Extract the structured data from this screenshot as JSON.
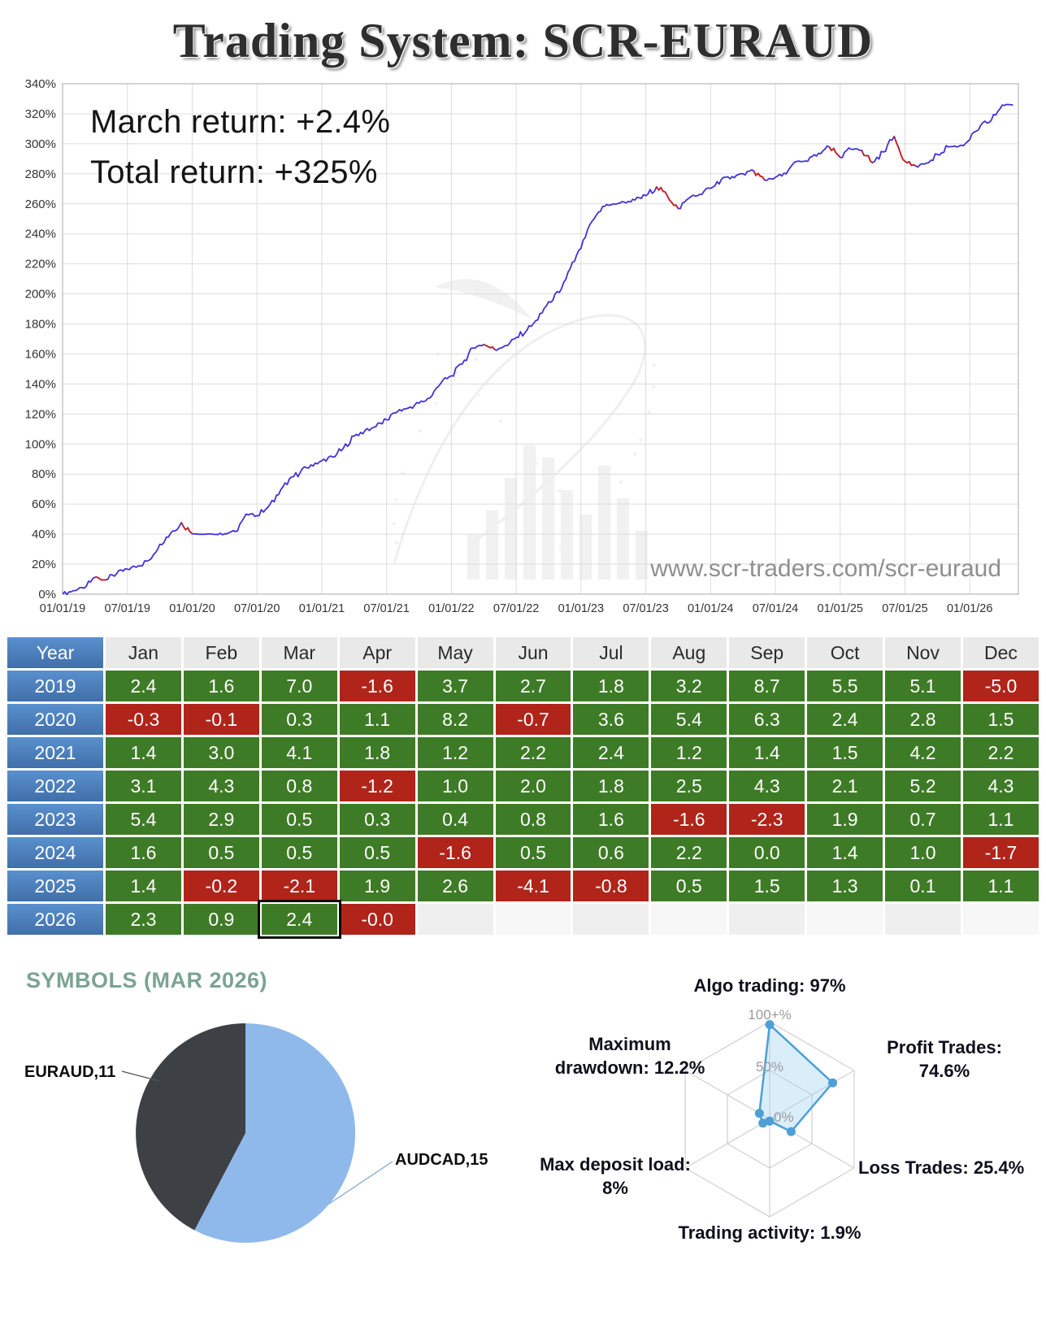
{
  "page_title": "Trading System: SCR-EURAUD",
  "equity_chart": {
    "annotation_march": "March return: +2.4%",
    "annotation_total": "Total return: +325%",
    "watermark_url": "www.scr-traders.com/scr-euraud",
    "line_color": "#4031dd",
    "drawdown_color": "#cc2020",
    "y_axis": {
      "min": 0,
      "max": 340,
      "step": 20,
      "suffix": "%"
    },
    "x_labels": [
      "01/01/19",
      "07/01/19",
      "01/01/20",
      "07/01/20",
      "01/01/21",
      "07/01/21",
      "01/01/22",
      "07/01/22",
      "01/01/23",
      "07/01/23",
      "01/01/24",
      "07/01/24",
      "01/01/25",
      "07/01/25",
      "01/01/26"
    ]
  },
  "chart_data": [
    {
      "type": "line",
      "name": "equity-curve",
      "title": "Cumulative return of SCR-EURAUD",
      "x_start": "01/01/19",
      "x_step": "1 month",
      "unit": "%",
      "y_range": [
        0,
        340
      ],
      "values": [
        0,
        2.4,
        4.0,
        11.3,
        9.5,
        13.6,
        16.7,
        18.8,
        22.6,
        33.2,
        40.6,
        47.7,
        40.3,
        39.9,
        39.8,
        40.2,
        41.7,
        53.4,
        52.3,
        57.8,
        66.3,
        76.8,
        81.0,
        86.1,
        88.9,
        91.5,
        97.2,
        105.3,
        109.0,
        111.5,
        116.2,
        121.4,
        124.0,
        127.2,
        130.6,
        140.3,
        145.5,
        153.2,
        164.0,
        166.2,
        163.0,
        165.6,
        170.9,
        175.8,
        182.7,
        194.8,
        201.0,
        216.7,
        230.3,
        248.1,
        258.2,
        260.0,
        261.1,
        262.5,
        265.4,
        271.3,
        265.3,
        256.9,
        263.7,
        266.3,
        270.3,
        276.2,
        278.1,
        280.0,
        281.9,
        275.8,
        277.7,
        279.9,
        288.3,
        288.3,
        293.7,
        297.7,
        290.9,
        296.4,
        295.6,
        287.3,
        294.6,
        304.9,
        288.3,
        285.2,
        287.1,
        292.9,
        298.0,
        298.4,
        302.8,
        312.1,
        315.8,
        325.8,
        325.8
      ]
    },
    {
      "type": "table",
      "name": "monthly-returns",
      "data_ref": "returns_table"
    },
    {
      "type": "pie",
      "name": "symbols-mar-2026",
      "labels": [
        "AUDCAD,15",
        "EURAUD,11"
      ],
      "values": [
        15,
        11
      ]
    },
    {
      "type": "radar",
      "name": "performance-radar",
      "scale_max": 100,
      "axes": [
        "Algo trading",
        "Profit Trades",
        "Loss Trades",
        "Trading activity",
        "Max deposit load",
        "Maximum drawdown"
      ],
      "values": [
        97,
        74.6,
        25.4,
        1.9,
        8,
        12.2
      ]
    }
  ],
  "returns_table": {
    "header": [
      "Year",
      "Jan",
      "Feb",
      "Mar",
      "Apr",
      "May",
      "Jun",
      "Jul",
      "Aug",
      "Sep",
      "Oct",
      "Nov",
      "Dec"
    ],
    "rows": [
      {
        "year": "2019",
        "values": [
          "2.4",
          "1.6",
          "7.0",
          "-1.6",
          "3.7",
          "2.7",
          "1.8",
          "3.2",
          "8.7",
          "5.5",
          "5.1",
          "-5.0"
        ]
      },
      {
        "year": "2020",
        "values": [
          "-0.3",
          "-0.1",
          "0.3",
          "1.1",
          "8.2",
          "-0.7",
          "3.6",
          "5.4",
          "6.3",
          "2.4",
          "2.8",
          "1.5"
        ]
      },
      {
        "year": "2021",
        "values": [
          "1.4",
          "3.0",
          "4.1",
          "1.8",
          "1.2",
          "2.2",
          "2.4",
          "1.2",
          "1.4",
          "1.5",
          "4.2",
          "2.2"
        ]
      },
      {
        "year": "2022",
        "values": [
          "3.1",
          "4.3",
          "0.8",
          "-1.2",
          "1.0",
          "2.0",
          "1.8",
          "2.5",
          "4.3",
          "2.1",
          "5.2",
          "4.3"
        ]
      },
      {
        "year": "2023",
        "values": [
          "5.4",
          "2.9",
          "0.5",
          "0.3",
          "0.4",
          "0.8",
          "1.6",
          "-1.6",
          "-2.3",
          "1.9",
          "0.7",
          "1.1"
        ]
      },
      {
        "year": "2024",
        "values": [
          "1.6",
          "0.5",
          "0.5",
          "0.5",
          "-1.6",
          "0.5",
          "0.6",
          "2.2",
          "0.0",
          "1.4",
          "1.0",
          "-1.7"
        ]
      },
      {
        "year": "2025",
        "values": [
          "1.4",
          "-0.2",
          "-2.1",
          "1.9",
          "2.6",
          "-4.1",
          "-0.8",
          "0.5",
          "1.5",
          "1.3",
          "0.1",
          "1.1"
        ]
      },
      {
        "year": "2026",
        "values": [
          "2.3",
          "0.9",
          "2.4",
          "-0.0",
          "",
          "",
          "",
          "",
          "",
          "",
          "",
          ""
        ]
      }
    ],
    "highlight": {
      "row": 7,
      "col": 2
    },
    "colors": {
      "green": "#3e7b26",
      "red": "#b0241a",
      "year_blue": "#4a80c4"
    }
  },
  "symbols_pie": {
    "title": "SYMBOLS (MAR 2026)",
    "slices": [
      {
        "label": "AUDCAD,15",
        "value": 15,
        "color": "#8fb9ea"
      },
      {
        "label": "EURAUD,11",
        "value": 11,
        "color": "#3d4045"
      }
    ]
  },
  "radar_chart": {
    "labels": {
      "algo": "Algo trading: 97%",
      "profit": "Profit Trades:\n74.6%",
      "loss": "Loss Trades: 25.4%",
      "activity": "Trading activity: 1.9%",
      "deposit": "Max deposit load:\n8%",
      "drawdown": "Maximum\ndrawdown: 12.2%"
    },
    "rings": [
      "100+%",
      "50%",
      "0%"
    ],
    "values": {
      "algo": 97,
      "profit": 74.6,
      "loss": 25.4,
      "activity": 1.9,
      "deposit": 8,
      "drawdown": 12.2
    },
    "line_color": "#4d9fd6",
    "fill_color": "rgba(150,205,240,0.35)"
  }
}
